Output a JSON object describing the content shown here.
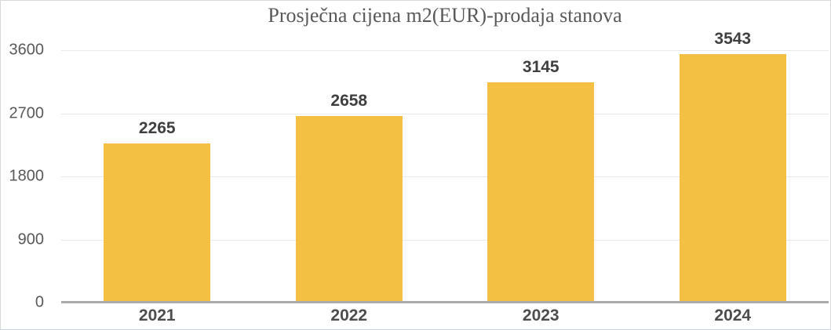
{
  "title": "Prosječna cijena m2(EUR)-prodaja stanova",
  "colors": {
    "bar": "#F3C043",
    "gridline": "#E9E9E9",
    "axis_line": "#ABABAB",
    "title_text": "#595959",
    "y_tick_text": "#595959",
    "data_label_text": "#3F3F3F",
    "x_label_text": "#4D4D4D",
    "frame_border": "#D9D9D9",
    "background": "#FFFFFF"
  },
  "chart_data": {
    "type": "bar",
    "categories": [
      "2021",
      "2022",
      "2023",
      "2024"
    ],
    "values": [
      2265,
      2658,
      3145,
      3543
    ],
    "title": "Prosječna cijena m2(EUR)-prodaja stanova",
    "xlabel": "",
    "ylabel": "",
    "ylim": [
      0,
      3600
    ],
    "yticks": [
      0,
      900,
      1800,
      2700,
      3600
    ],
    "grid": true,
    "legend": false,
    "data_labels": true
  }
}
